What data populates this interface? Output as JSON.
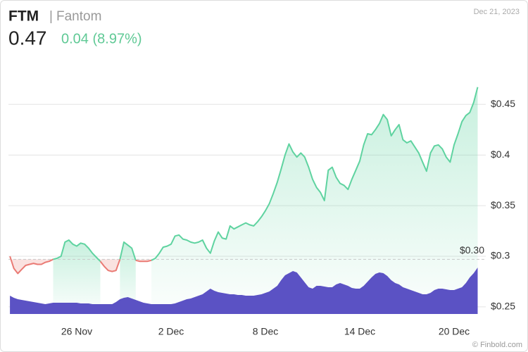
{
  "chart_data": {
    "type": "price-volume",
    "title": "FTM",
    "subtitle": "Fantom",
    "price": 0.47,
    "change": "0.04 (8.97%)",
    "date": "Dec 21, 2023",
    "source": "© Finbold.com",
    "categories": [
      null,
      null,
      null,
      null,
      null,
      null,
      null,
      null,
      null,
      null,
      null,
      null,
      null,
      null,
      null,
      null,
      null,
      "26 Nov",
      null,
      null,
      null,
      null,
      null,
      null,
      null,
      null,
      null,
      null,
      null,
      null,
      null,
      null,
      null,
      null,
      null,
      null,
      null,
      null,
      null,
      null,
      null,
      "2 Dec",
      null,
      null,
      null,
      null,
      null,
      null,
      null,
      null,
      null,
      null,
      null,
      null,
      null,
      null,
      null,
      null,
      null,
      null,
      null,
      null,
      null,
      null,
      null,
      "8 Dec",
      null,
      null,
      null,
      null,
      null,
      null,
      null,
      null,
      null,
      null,
      null,
      null,
      null,
      null,
      null,
      null,
      null,
      null,
      null,
      null,
      null,
      null,
      null,
      "14 Dec",
      null,
      null,
      null,
      null,
      null,
      null,
      null,
      null,
      null,
      null,
      null,
      null,
      null,
      null,
      null,
      null,
      null,
      null,
      null,
      null,
      null,
      null,
      null,
      "20 Dec",
      null,
      null,
      null,
      null,
      null,
      null
    ],
    "series": [
      {
        "name": "Price",
        "color": "#5fd3a0",
        "below_color": "#ea7a74",
        "values": [
          0.3,
          0.288,
          0.283,
          0.287,
          0.291,
          0.292,
          0.293,
          0.292,
          0.292,
          0.294,
          0.295,
          0.297,
          0.298,
          0.3,
          0.314,
          0.316,
          0.312,
          0.31,
          0.313,
          0.312,
          0.308,
          0.303,
          0.299,
          0.295,
          0.29,
          0.286,
          0.285,
          0.286,
          0.297,
          0.314,
          0.311,
          0.308,
          0.296,
          0.295,
          0.295,
          0.295,
          0.296,
          0.298,
          0.303,
          0.309,
          0.31,
          0.312,
          0.32,
          0.321,
          0.317,
          0.316,
          0.314,
          0.313,
          0.314,
          0.316,
          0.308,
          0.303,
          0.315,
          0.324,
          0.318,
          0.317,
          0.33,
          0.327,
          0.329,
          0.331,
          0.333,
          0.331,
          0.33,
          0.334,
          0.339,
          0.345,
          0.352,
          0.362,
          0.373,
          0.386,
          0.4,
          0.411,
          0.403,
          0.398,
          0.402,
          0.398,
          0.388,
          0.376,
          0.368,
          0.363,
          0.355,
          0.385,
          0.388,
          0.378,
          0.372,
          0.37,
          0.366,
          0.376,
          0.385,
          0.394,
          0.41,
          0.421,
          0.42,
          0.425,
          0.431,
          0.44,
          0.435,
          0.419,
          0.425,
          0.43,
          0.415,
          0.412,
          0.414,
          0.408,
          0.402,
          0.393,
          0.384,
          0.402,
          0.409,
          0.41,
          0.406,
          0.398,
          0.393,
          0.41,
          0.421,
          0.433,
          0.439,
          0.442,
          0.452,
          0.467
        ]
      },
      {
        "name": "Volume",
        "color": "#5b52c4",
        "axis": "y2",
        "values": [
          26,
          23,
          21,
          20,
          19,
          18,
          17,
          16,
          15,
          14,
          15,
          16,
          16,
          16,
          16,
          16,
          16,
          16,
          15,
          15,
          15,
          14,
          14,
          14,
          14,
          14,
          14,
          17,
          21,
          23,
          24,
          22,
          20,
          18,
          16,
          15,
          14,
          14,
          14,
          14,
          14,
          14,
          15,
          17,
          19,
          21,
          22,
          24,
          26,
          28,
          32,
          36,
          33,
          31,
          30,
          29,
          28,
          28,
          27,
          27,
          26,
          26,
          26,
          27,
          28,
          30,
          32,
          36,
          40,
          48,
          55,
          58,
          61,
          59,
          52,
          45,
          38,
          36,
          40,
          40,
          39,
          38,
          38,
          42,
          44,
          42,
          40,
          37,
          36,
          36,
          40,
          46,
          52,
          57,
          59,
          58,
          54,
          48,
          44,
          42,
          38,
          36,
          34,
          32,
          30,
          28,
          28,
          30,
          34,
          36,
          36,
          35,
          34,
          34,
          36,
          38,
          44,
          52,
          58,
          66
        ]
      }
    ],
    "ylim": [
      0.243,
      0.494
    ],
    "yticks": [
      {
        "value": 0.25,
        "label": "$0.25"
      },
      {
        "value": 0.3,
        "label": "$0.3"
      },
      {
        "value": 0.35,
        "label": "$0.35"
      },
      {
        "value": 0.4,
        "label": "$0.4"
      },
      {
        "value": 0.45,
        "label": "$0.45"
      }
    ],
    "y2lim": [
      0,
      361
    ],
    "reference_line": {
      "value": 0.297,
      "label": "$0.30"
    },
    "grid": true
  }
}
